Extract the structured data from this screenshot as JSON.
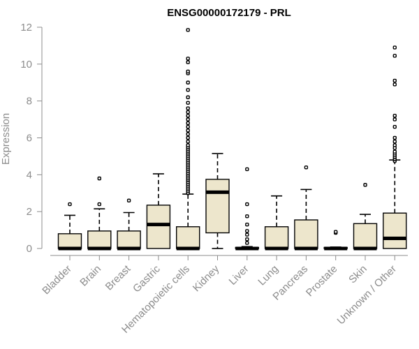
{
  "chart_data": {
    "type": "boxplot",
    "title": "ENSG00000172179 - PRL",
    "xlabel": "",
    "ylabel": "Expression",
    "ylim": [
      0,
      12
    ],
    "yticks": [
      0,
      2,
      4,
      6,
      8,
      10,
      12
    ],
    "box_fill": "#ede6cc",
    "box_stroke": "#000000",
    "categories": [
      "Bladder",
      "Brain",
      "Breast",
      "Gastric",
      "Hematopoietic cells",
      "Kidney",
      "Liver",
      "Lung",
      "Pancreas",
      "Prostate",
      "Skin",
      "Unknown / Other"
    ],
    "boxes": [
      {
        "q1": 0,
        "median": 0,
        "q3": 0.8,
        "whisker_low": 0,
        "whisker_high": 1.8,
        "outliers": [
          2.4
        ]
      },
      {
        "q1": 0,
        "median": 0,
        "q3": 0.95,
        "whisker_low": 0,
        "whisker_high": 2.15,
        "outliers": [
          2.4,
          3.8
        ]
      },
      {
        "q1": 0,
        "median": 0,
        "q3": 0.95,
        "whisker_low": 0,
        "whisker_high": 1.95,
        "outliers": [
          2.6
        ]
      },
      {
        "q1": 0,
        "median": 1.3,
        "q3": 2.35,
        "whisker_low": 0,
        "whisker_high": 4.05,
        "outliers": []
      },
      {
        "q1": 0,
        "median": 0,
        "q3": 1.18,
        "whisker_low": 0,
        "whisker_high": 2.95,
        "outliers": [
          3.0,
          3.1,
          3.2,
          3.3,
          3.4,
          3.5,
          3.6,
          3.7,
          3.8,
          3.9,
          4.0,
          4.1,
          4.2,
          4.3,
          4.4,
          4.5,
          4.6,
          4.7,
          4.8,
          4.9,
          5.0,
          5.1,
          5.2,
          5.3,
          5.4,
          5.5,
          5.6,
          5.8,
          6.0,
          6.2,
          6.4,
          6.6,
          6.8,
          7.0,
          7.2,
          7.4,
          7.6,
          7.9,
          8.2,
          8.6,
          9.0,
          9.5,
          9.6,
          10.1,
          10.3,
          11.85
        ]
      },
      {
        "q1": 0.85,
        "median": 3.05,
        "q3": 3.75,
        "whisker_low": 0,
        "whisker_high": 5.15,
        "outliers": []
      },
      {
        "q1": 0,
        "median": 0,
        "q3": 0.05,
        "whisker_low": 0,
        "whisker_high": 0.1,
        "outliers": [
          0.3,
          0.5,
          0.75,
          0.95,
          1.3,
          1.75,
          2.4,
          4.3
        ]
      },
      {
        "q1": 0,
        "median": 0,
        "q3": 1.18,
        "whisker_low": 0,
        "whisker_high": 2.85,
        "outliers": []
      },
      {
        "q1": 0,
        "median": 0,
        "q3": 1.55,
        "whisker_low": 0,
        "whisker_high": 3.2,
        "outliers": [
          4.4
        ]
      },
      {
        "q1": 0,
        "median": 0,
        "q3": 0.05,
        "whisker_low": 0,
        "whisker_high": 0.08,
        "outliers": [
          0.85,
          0.9
        ]
      },
      {
        "q1": 0,
        "median": 0,
        "q3": 1.35,
        "whisker_low": 0,
        "whisker_high": 1.85,
        "outliers": [
          3.45
        ]
      },
      {
        "q1": 0,
        "median": 0.55,
        "q3": 1.92,
        "whisker_low": 0,
        "whisker_high": 4.8,
        "outliers": [
          4.75,
          4.85,
          4.95,
          5.05,
          5.15,
          5.25,
          5.45,
          5.6,
          5.8,
          6.0,
          6.6,
          7.0,
          7.2,
          8.9,
          9.1,
          10.45,
          10.9
        ]
      }
    ]
  }
}
